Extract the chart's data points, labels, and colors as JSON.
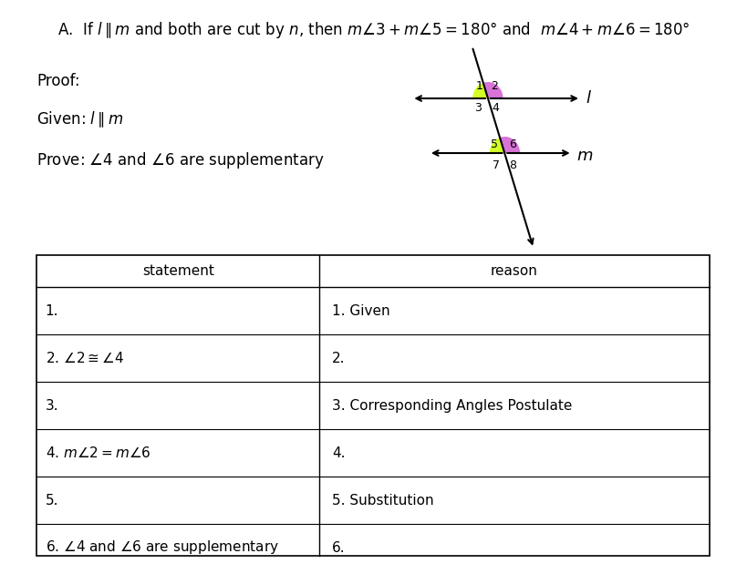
{
  "title_text": "A.  If $l \\parallel m$ and both are cut by $n$, then $m\\angle3 + m\\angle5 = 180°$ and  $m\\angle4 + m\\angle6 = 180°$",
  "proof_label": "Proof:",
  "given_label": "Given: $l \\parallel m$",
  "prove_label": "Prove: $\\angle4$ and $\\angle6$ are supplementary",
  "table_headers": [
    "statement",
    "reason"
  ],
  "table_rows": [
    [
      "1.",
      "1. Given"
    ],
    [
      "2. $\\angle2 \\cong \\angle4$",
      "2."
    ],
    [
      "3.",
      "3. Corresponding Angles Postulate"
    ],
    [
      "4. $m\\angle2 = m\\angle6$",
      "4."
    ],
    [
      "5.",
      "5. Substitution"
    ],
    [
      "6. $\\angle4$ and $\\angle6$ are supplementary",
      "6."
    ]
  ],
  "bg_color": "#ffffff",
  "text_color": "#000000",
  "table_col_split": 0.42,
  "angle3_color": "#ccff00",
  "angle4_color": "#cc44cc",
  "angle5_color": "#ccff00",
  "angle6_color": "#cc44cc"
}
